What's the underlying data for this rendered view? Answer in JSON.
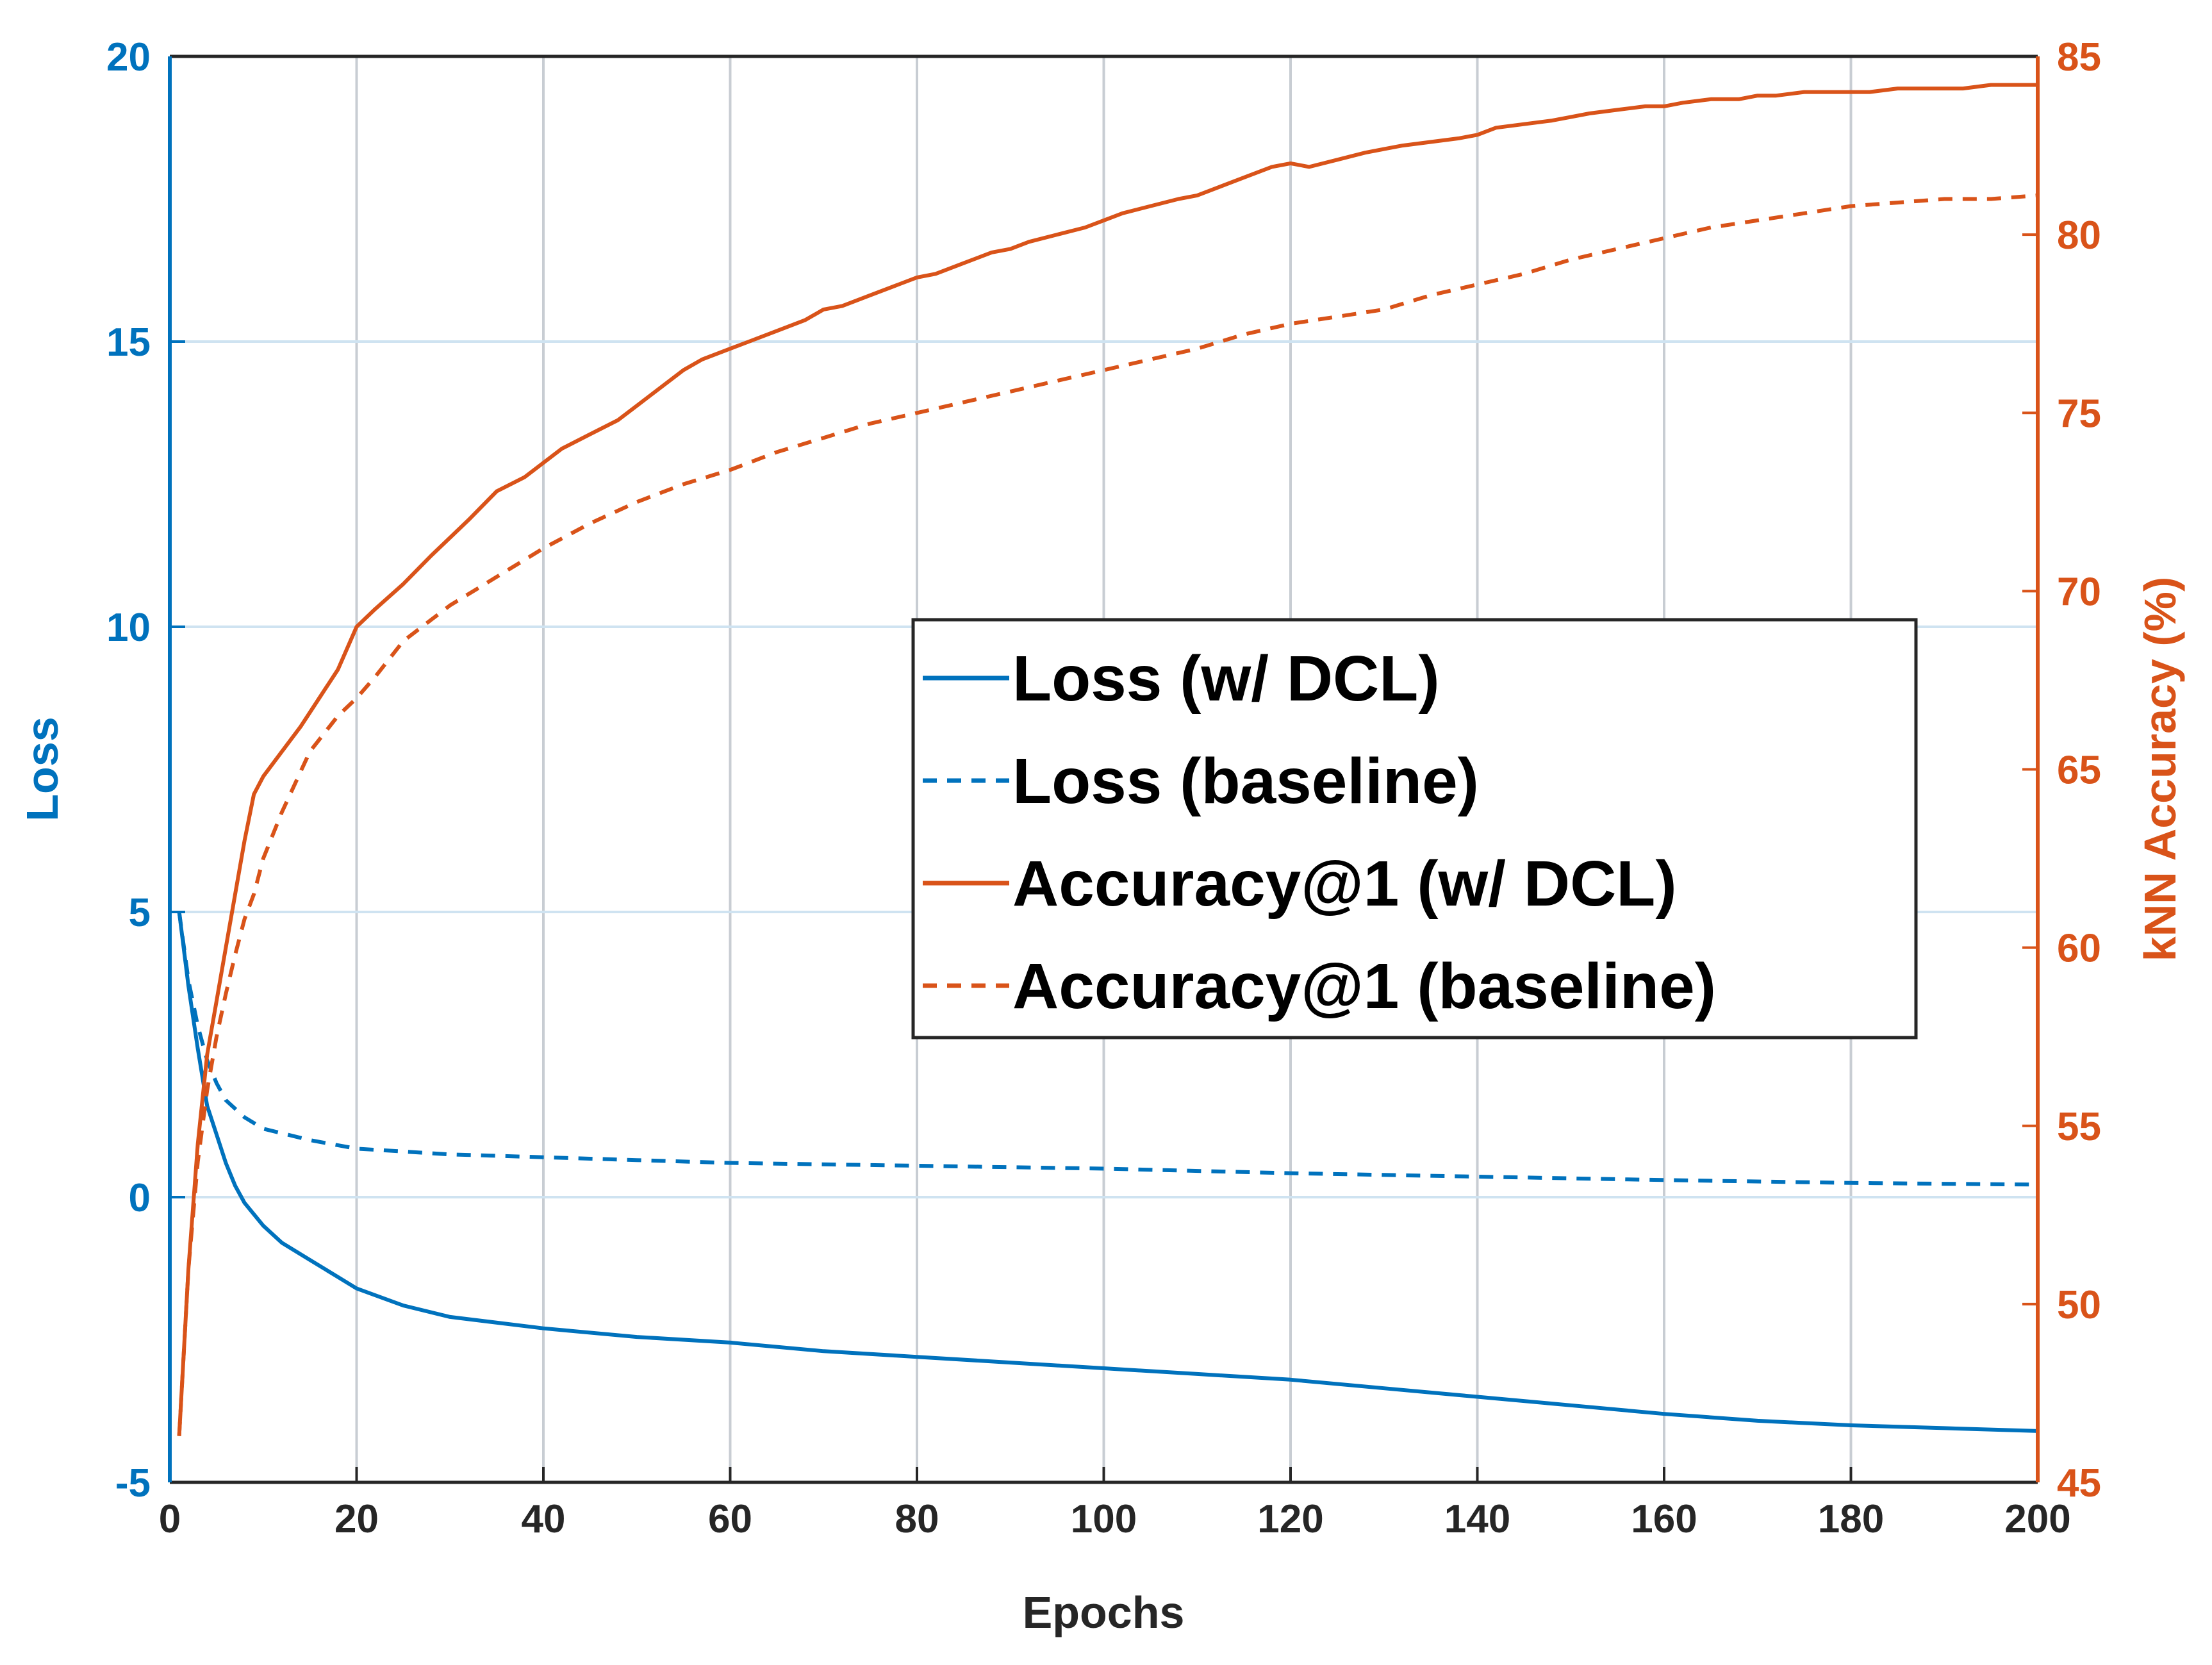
{
  "colors": {
    "loss": "#0072BD",
    "accuracy": "#D95319",
    "xgrid": "#C8CDD3",
    "ygrid": "#CFE3F1",
    "text": "#262626"
  },
  "chart_data": {
    "type": "line",
    "xlabel": "Epochs",
    "ylabel_left": "Loss",
    "ylabel_right": "kNN Accuracy (%)",
    "xlim": [
      0,
      200
    ],
    "ylim_left": [
      -5,
      20
    ],
    "ylim_right": [
      45,
      85
    ],
    "xticks": [
      "0",
      "20",
      "40",
      "60",
      "80",
      "100",
      "120",
      "140",
      "160",
      "180",
      "200"
    ],
    "yticks_left": [
      "-5",
      "0",
      "5",
      "10",
      "15",
      "20"
    ],
    "yticks_right": [
      "45",
      "50",
      "55",
      "60",
      "65",
      "70",
      "75",
      "80",
      "85"
    ],
    "grid": true,
    "legend_position": "center-right",
    "series": [
      {
        "name": "Loss (w/ DCL)",
        "axis": "left",
        "style": "solid",
        "x": [
          1,
          2,
          3,
          4,
          5,
          6,
          7,
          8,
          10,
          12,
          15,
          18,
          20,
          25,
          30,
          40,
          50,
          60,
          70,
          80,
          90,
          100,
          110,
          120,
          130,
          140,
          150,
          160,
          170,
          180,
          190,
          200
        ],
        "values": [
          5.0,
          3.7,
          2.6,
          1.6,
          1.1,
          0.6,
          0.2,
          -0.1,
          -0.5,
          -0.8,
          -1.1,
          -1.4,
          -1.6,
          -1.9,
          -2.1,
          -2.3,
          -2.45,
          -2.55,
          -2.7,
          -2.8,
          -2.9,
          -3.0,
          -3.1,
          -3.2,
          -3.35,
          -3.5,
          -3.65,
          -3.8,
          -3.92,
          -4.0,
          -4.05,
          -4.1
        ]
      },
      {
        "name": "Loss (baseline)",
        "axis": "left",
        "style": "dashed",
        "x": [
          1,
          2,
          3,
          4,
          5,
          6,
          8,
          10,
          15,
          20,
          30,
          40,
          50,
          60,
          80,
          100,
          120,
          140,
          160,
          180,
          200
        ],
        "values": [
          5.0,
          3.8,
          3.0,
          2.4,
          2.0,
          1.7,
          1.4,
          1.2,
          1.0,
          0.85,
          0.75,
          0.7,
          0.65,
          0.6,
          0.55,
          0.5,
          0.42,
          0.36,
          0.3,
          0.25,
          0.22
        ]
      },
      {
        "name": "Accuracy@1 (w/ DCL)",
        "axis": "right",
        "style": "solid",
        "x": [
          1,
          2,
          3,
          4,
          5,
          6,
          7,
          8,
          9,
          10,
          12,
          14,
          16,
          18,
          20,
          22,
          25,
          28,
          30,
          32,
          35,
          38,
          40,
          42,
          45,
          48,
          50,
          52,
          55,
          57,
          60,
          62,
          65,
          68,
          70,
          72,
          75,
          78,
          80,
          82,
          85,
          88,
          90,
          92,
          95,
          98,
          100,
          102,
          105,
          108,
          110,
          112,
          115,
          118,
          120,
          122,
          125,
          128,
          130,
          132,
          135,
          138,
          140,
          142,
          145,
          148,
          150,
          152,
          155,
          158,
          160,
          162,
          165,
          168,
          170,
          172,
          175,
          178,
          180,
          182,
          185,
          188,
          190,
          192,
          195,
          198,
          200
        ],
        "values": [
          46.3,
          51.0,
          54.5,
          57.0,
          58.5,
          60.0,
          61.5,
          63.0,
          64.3,
          64.8,
          65.5,
          66.2,
          67.0,
          67.8,
          69.0,
          69.5,
          70.2,
          71.0,
          71.5,
          72.0,
          72.8,
          73.2,
          73.6,
          74.0,
          74.4,
          74.8,
          75.2,
          75.6,
          76.2,
          76.5,
          76.8,
          77.0,
          77.3,
          77.6,
          77.9,
          78.0,
          78.3,
          78.6,
          78.8,
          78.9,
          79.2,
          79.5,
          79.6,
          79.8,
          80.0,
          80.2,
          80.4,
          80.6,
          80.8,
          81.0,
          81.1,
          81.3,
          81.6,
          81.9,
          82.0,
          81.9,
          82.1,
          82.3,
          82.4,
          82.5,
          82.6,
          82.7,
          82.8,
          83.0,
          83.1,
          83.2,
          83.3,
          83.4,
          83.5,
          83.6,
          83.6,
          83.7,
          83.8,
          83.8,
          83.9,
          83.9,
          84.0,
          84.0,
          84.0,
          84.0,
          84.1,
          84.1,
          84.1,
          84.1,
          84.2,
          84.2,
          84.2
        ]
      },
      {
        "name": "Accuracy@1 (baseline)",
        "axis": "right",
        "style": "dashed",
        "x": [
          1,
          2,
          3,
          4,
          5,
          6,
          7,
          8,
          9,
          10,
          12,
          15,
          18,
          20,
          22,
          25,
          28,
          30,
          35,
          40,
          45,
          50,
          55,
          60,
          62,
          65,
          70,
          75,
          80,
          85,
          90,
          95,
          100,
          105,
          110,
          115,
          120,
          125,
          130,
          135,
          140,
          145,
          150,
          155,
          160,
          165,
          170,
          175,
          180,
          185,
          190,
          195,
          200
        ],
        "values": [
          46.3,
          51.0,
          54.0,
          56.0,
          57.5,
          58.7,
          59.8,
          60.8,
          61.5,
          62.5,
          63.8,
          65.5,
          66.5,
          67.0,
          67.6,
          68.6,
          69.2,
          69.6,
          70.4,
          71.2,
          71.9,
          72.5,
          73.0,
          73.4,
          73.6,
          73.9,
          74.3,
          74.7,
          75.0,
          75.3,
          75.6,
          75.9,
          76.2,
          76.5,
          76.8,
          77.2,
          77.5,
          77.7,
          77.9,
          78.3,
          78.6,
          78.9,
          79.3,
          79.6,
          79.9,
          80.2,
          80.4,
          80.6,
          80.8,
          80.9,
          81.0,
          81.0,
          81.1
        ]
      }
    ]
  }
}
